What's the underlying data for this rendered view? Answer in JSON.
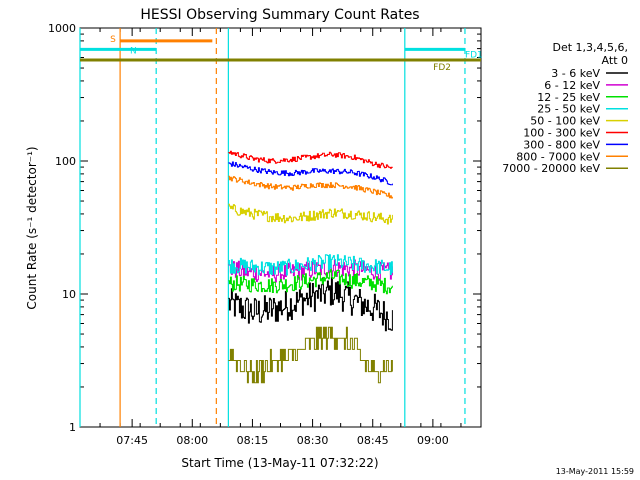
{
  "chart_data": {
    "type": "line",
    "title": "HESSI Observing Summary Count Rates",
    "xlabel": "Start Time (13-May-11 07:32:22)",
    "ylabel": "Count Rate (s⁻¹ detector⁻¹)",
    "yscale": "log",
    "ylim": [
      1,
      1000
    ],
    "xlim": [
      "07:32",
      "09:12"
    ],
    "x_ticks": [
      "07:45",
      "08:00",
      "08:15",
      "08:30",
      "08:45",
      "09:00"
    ],
    "y_ticks": [
      "1",
      "10",
      "100",
      "1000"
    ],
    "legend": {
      "header_line1": "Det 1,3,4,5,6,",
      "header_line2": "Att 0",
      "placement": "right"
    },
    "series": [
      {
        "name": "3 - 6 keV",
        "color": "#000000",
        "x": [
          "08:09",
          "08:15",
          "08:20",
          "08:25",
          "08:30",
          "08:35",
          "08:40",
          "08:45",
          "08:50"
        ],
        "values": [
          8.5,
          7.3,
          7.6,
          8.5,
          9.6,
          10.5,
          9.0,
          7.8,
          6.5
        ]
      },
      {
        "name": "6 - 12 keV",
        "color": "#d000d0",
        "x": [
          "08:09",
          "08:15",
          "08:20",
          "08:25",
          "08:30",
          "08:35",
          "08:40",
          "08:45",
          "08:50"
        ],
        "values": [
          15.5,
          14.5,
          14.2,
          14.6,
          15.2,
          15.8,
          15.4,
          15.0,
          14.5
        ]
      },
      {
        "name": "12 - 25 keV",
        "color": "#00e000",
        "x": [
          "08:09",
          "08:15",
          "08:20",
          "08:25",
          "08:30",
          "08:35",
          "08:40",
          "08:45",
          "08:50"
        ],
        "values": [
          12.0,
          11.8,
          11.6,
          12.0,
          12.8,
          13.5,
          12.6,
          12.0,
          11.3
        ]
      },
      {
        "name": "25 - 50 keV",
        "color": "#00e0e0",
        "x": [
          "08:09",
          "08:15",
          "08:20",
          "08:25",
          "08:30",
          "08:35",
          "08:40",
          "08:45",
          "08:50"
        ],
        "values": [
          16.5,
          16.0,
          15.6,
          16.0,
          16.8,
          17.5,
          16.8,
          16.2,
          15.5
        ]
      },
      {
        "name": "50 - 100 keV",
        "color": "#d8d000",
        "x": [
          "08:09",
          "08:15",
          "08:20",
          "08:25",
          "08:30",
          "08:35",
          "08:40",
          "08:45",
          "08:50"
        ],
        "values": [
          44,
          40,
          38,
          37,
          39,
          41,
          40,
          38,
          36
        ]
      },
      {
        "name": "100 - 300 keV",
        "color": "#ff0000",
        "x": [
          "08:09",
          "08:15",
          "08:20",
          "08:25",
          "08:30",
          "08:35",
          "08:40",
          "08:45",
          "08:50"
        ],
        "values": [
          117,
          104,
          100,
          103,
          108,
          112,
          107,
          96,
          88
        ]
      },
      {
        "name": "300 - 800 keV",
        "color": "#0000ff",
        "x": [
          "08:09",
          "08:15",
          "08:20",
          "08:25",
          "08:30",
          "08:35",
          "08:40",
          "08:45",
          "08:50"
        ],
        "values": [
          96,
          87,
          82,
          81,
          84,
          84,
          82,
          76,
          68
        ]
      },
      {
        "name": "800 - 7000 keV",
        "color": "#ff8000",
        "x": [
          "08:09",
          "08:15",
          "08:20",
          "08:25",
          "08:30",
          "08:35",
          "08:40",
          "08:45",
          "08:50"
        ],
        "values": [
          75,
          68,
          64,
          63,
          66,
          66,
          64,
          59,
          54
        ]
      },
      {
        "name": "7000 - 20000 keV",
        "color": "#808000",
        "x": [
          "08:09",
          "08:15",
          "08:20",
          "08:25",
          "08:30",
          "08:35",
          "08:40",
          "08:45",
          "08:50"
        ],
        "values": [
          3.5,
          2.5,
          3.0,
          3.5,
          4.5,
          5.0,
          4.0,
          2.5,
          3.0
        ]
      }
    ],
    "flag_bars": [
      {
        "label": "S",
        "color": "#ff8000",
        "value": 800,
        "start": "07:42",
        "end": "08:05"
      },
      {
        "label": "N",
        "color": "#00e0e0",
        "value": 690,
        "start": "07:32",
        "end": "07:51"
      },
      {
        "label": "FD1",
        "color": "#00e0e0",
        "value": 690,
        "start": "08:53",
        "end": "09:08"
      },
      {
        "label": "FD2",
        "color": "#808000",
        "value": 575,
        "start": "07:32",
        "end": "09:12"
      }
    ],
    "vertical_markers": [
      {
        "time": "07:32",
        "color": "#00e0e0",
        "style": "solid"
      },
      {
        "time": "07:42",
        "color": "#ff8000",
        "style": "solid"
      },
      {
        "time": "07:51",
        "color": "#00e0e0",
        "style": "dashed"
      },
      {
        "time": "08:06",
        "color": "#ff8000",
        "style": "dashed"
      },
      {
        "time": "08:09",
        "color": "#00e0e0",
        "style": "solid"
      },
      {
        "time": "08:53",
        "color": "#00e0e0",
        "style": "solid"
      },
      {
        "time": "09:08",
        "color": "#00e0e0",
        "style": "dashed"
      }
    ],
    "footer_timestamp": "13-May-2011 15:59"
  }
}
